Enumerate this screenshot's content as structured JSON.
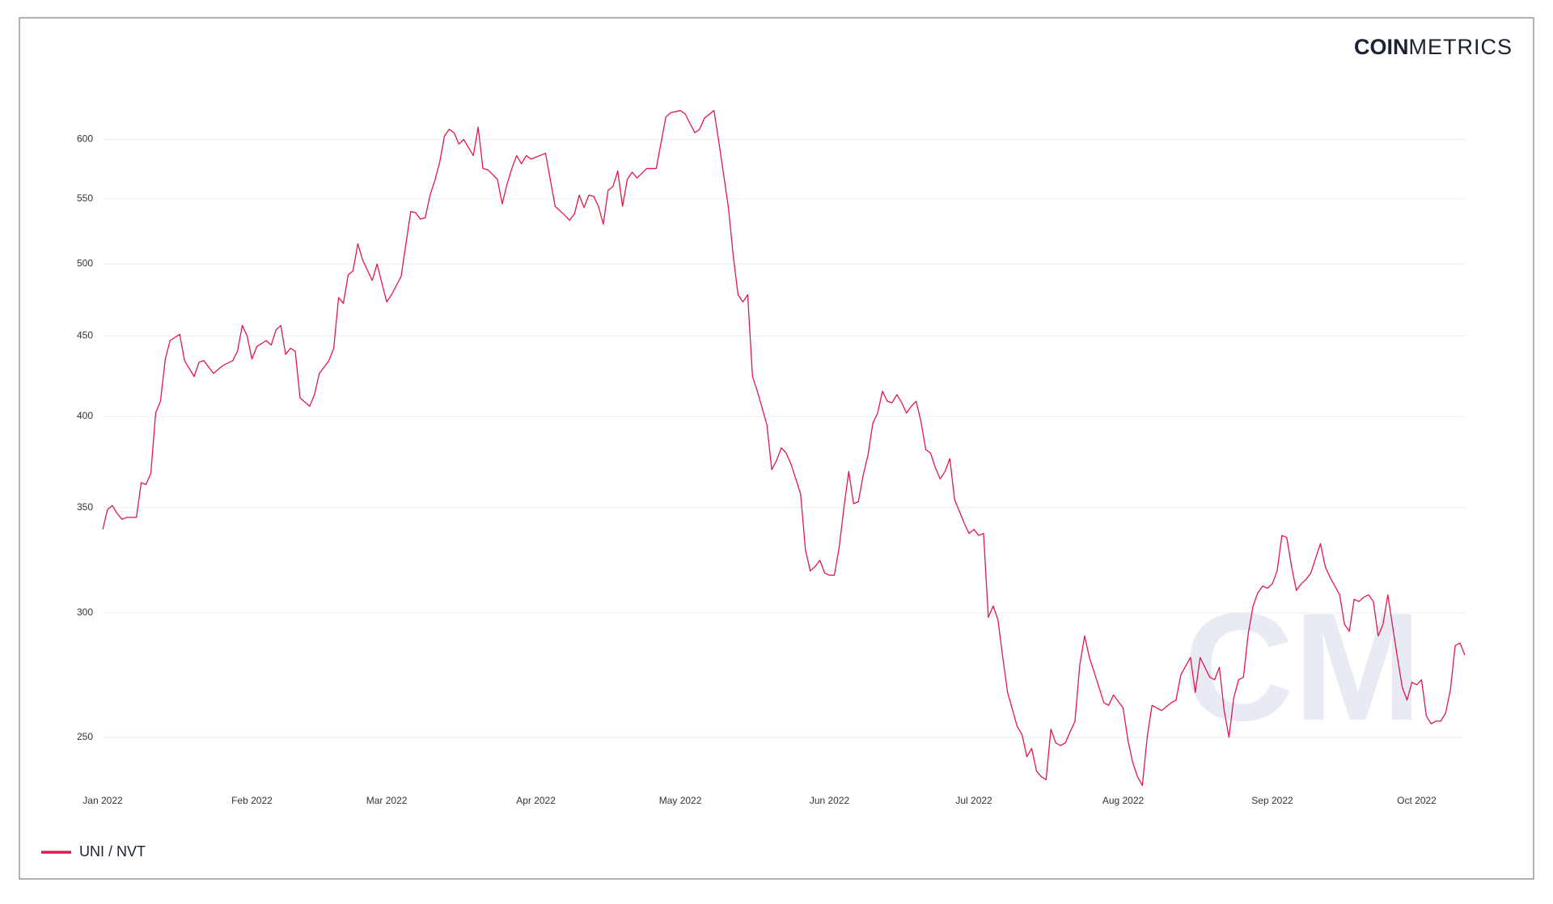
{
  "chart_data": {
    "type": "line",
    "brand": {
      "bold": "COIN",
      "light": "METRICS"
    },
    "watermark": "CM",
    "yscale": "log",
    "grid": true,
    "legend": "bottom-left",
    "xlim": [
      0,
      283
    ],
    "ylim": [
      232,
      640
    ],
    "yticks": [
      250,
      300,
      350,
      400,
      450,
      500,
      550,
      600
    ],
    "xticks": [
      {
        "value": 0,
        "label": "Jan 2022"
      },
      {
        "value": 31,
        "label": "Feb 2022"
      },
      {
        "value": 59,
        "label": "Mar 2022"
      },
      {
        "value": 90,
        "label": "Apr 2022"
      },
      {
        "value": 120,
        "label": "May 2022"
      },
      {
        "value": 151,
        "label": "Jun 2022"
      },
      {
        "value": 181,
        "label": "Jul 2022"
      },
      {
        "value": 212,
        "label": "Aug 2022"
      },
      {
        "value": 243,
        "label": "Sep 2022"
      },
      {
        "value": 273,
        "label": "Oct 2022"
      }
    ],
    "x": [
      0,
      1,
      2,
      3,
      4,
      5,
      7,
      8,
      9,
      10,
      11,
      12,
      13,
      14,
      16,
      17,
      19,
      20,
      21,
      23,
      25,
      27,
      28,
      29,
      30,
      31,
      32,
      34,
      35,
      36,
      37,
      38,
      39,
      40,
      41,
      43,
      44,
      45,
      47,
      48,
      49,
      50,
      51,
      52,
      53,
      54,
      56,
      57,
      59,
      60,
      62,
      63,
      64,
      65,
      66,
      67,
      68,
      69,
      70,
      71,
      72,
      73,
      74,
      75,
      77,
      78,
      79,
      80,
      82,
      83,
      84,
      85,
      86,
      87,
      88,
      89,
      92,
      94,
      96,
      97,
      98,
      99,
      100,
      101,
      102,
      103,
      104,
      105,
      106,
      107,
      108,
      109,
      110,
      111,
      113,
      115,
      117,
      118,
      120,
      121,
      123,
      124,
      125,
      127,
      128,
      129,
      130,
      131,
      132,
      133,
      134,
      135,
      136,
      137,
      138,
      139,
      140,
      141,
      142,
      143,
      144,
      145,
      146,
      147,
      148,
      149,
      150,
      151,
      152,
      153,
      154,
      155,
      156,
      157,
      158,
      159,
      160,
      161,
      162,
      163,
      164,
      165,
      166,
      167,
      168,
      169,
      170,
      171,
      172,
      173,
      174,
      175,
      176,
      177,
      178,
      179,
      180,
      181,
      182,
      183,
      184,
      185,
      186,
      187,
      188,
      190,
      191,
      192,
      193,
      194,
      195,
      196,
      197,
      198,
      199,
      200,
      201,
      202,
      203,
      204,
      205,
      206,
      207,
      208,
      209,
      210,
      212,
      213,
      214,
      215,
      216,
      217,
      218,
      220,
      222,
      223,
      224,
      226,
      227,
      228,
      229,
      230,
      231,
      232,
      233,
      234,
      235,
      236,
      237,
      238,
      239,
      240,
      241,
      242,
      243,
      244,
      245,
      246,
      247,
      248,
      249,
      250,
      251,
      252,
      253,
      254,
      255,
      256,
      257,
      258,
      259,
      260,
      261,
      262,
      263,
      264,
      265,
      266,
      267,
      268,
      269,
      270,
      271,
      272,
      273,
      274,
      275,
      276,
      277,
      278,
      279,
      280,
      281,
      282,
      283
    ],
    "series": [
      {
        "name": "UNI / NVT",
        "color": "#e3174b",
        "values": [
          339,
          349,
          351,
          347,
          344,
          345,
          345,
          363,
          362,
          368,
          402,
          409,
          435,
          447,
          451,
          434,
          424,
          433,
          434,
          426,
          431,
          434,
          440,
          457,
          450,
          435,
          443,
          447,
          444,
          454,
          457,
          438,
          442,
          440,
          411,
          406,
          413,
          426,
          434,
          442,
          476,
          472,
          492,
          495,
          515,
          503,
          488,
          500,
          473,
          478,
          491,
          515,
          540,
          539,
          534,
          535,
          553,
          565,
          580,
          603,
          609,
          606,
          596,
          600,
          586,
          611,
          575,
          574,
          566,
          546,
          562,
          575,
          586,
          579,
          586,
          583,
          588,
          544,
          537,
          533,
          538,
          553,
          543,
          553,
          552,
          544,
          530,
          557,
          560,
          573,
          544,
          566,
          572,
          567,
          575,
          575,
          620,
          624,
          626,
          623,
          606,
          609,
          619,
          626,
          598,
          570,
          543,
          506,
          478,
          473,
          478,
          424,
          415,
          405,
          395,
          370,
          375,
          382,
          379,
          373,
          365,
          357,
          329,
          319,
          321,
          324,
          318,
          317,
          317,
          330,
          350,
          369,
          352,
          353,
          367,
          378,
          396,
          402,
          415,
          409,
          408,
          413,
          408,
          402,
          406,
          409,
          397,
          381,
          379,
          371,
          365,
          369,
          376,
          354,
          348,
          342,
          337,
          339,
          336,
          337,
          298,
          303,
          297,
          281,
          267,
          254,
          251,
          243,
          246,
          238,
          236,
          235,
          253,
          248,
          247,
          248,
          252,
          256,
          278,
          290,
          281,
          275,
          269,
          263,
          262,
          266,
          261,
          249,
          241,
          236,
          233,
          250,
          262,
          260,
          263,
          264,
          274,
          281,
          267,
          281,
          277,
          273,
          272,
          277,
          260,
          250,
          265,
          272,
          273,
          291,
          303,
          309,
          312,
          311,
          313,
          319,
          336,
          335,
          321,
          310,
          313,
          315,
          318,
          325,
          332,
          321,
          316,
          312,
          308,
          295,
          292,
          306,
          305,
          307,
          308,
          305,
          290,
          295,
          308,
          294,
          281,
          269,
          264,
          271,
          270,
          272,
          258,
          255,
          256,
          256,
          259,
          268,
          286,
          287,
          282
        ]
      }
    ]
  }
}
